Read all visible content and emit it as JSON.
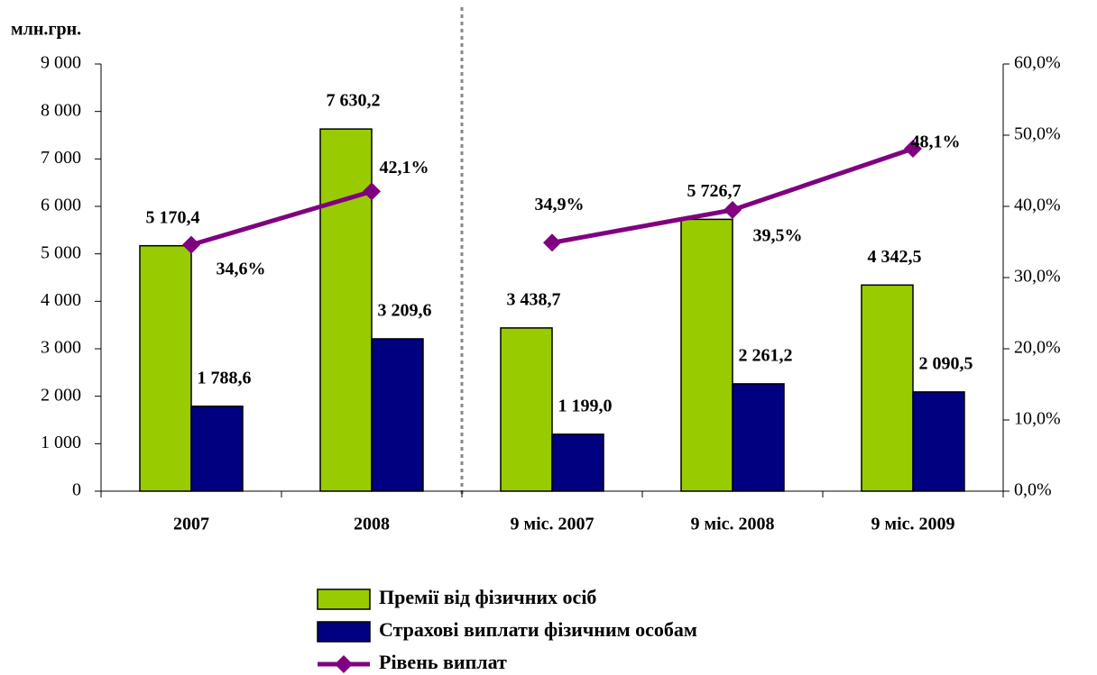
{
  "chart_data": {
    "type": "bar",
    "y_label": "млн.грн.",
    "categories": [
      "2007",
      "2008",
      "9 міс. 2007",
      "9 міс. 2008",
      "9 міс. 2009"
    ],
    "series": [
      {
        "name": "Премії від фізичних осіб",
        "color": "#99cc00",
        "type": "bar",
        "values": [
          5170.4,
          7630.2,
          3438.7,
          5726.7,
          4342.5
        ],
        "value_labels": [
          "5 170,4",
          "7 630,2",
          "3 438,7",
          "5 726,7",
          "4 342,5"
        ]
      },
      {
        "name": "Страхові виплати фізичним особам",
        "color": "#000080",
        "type": "bar",
        "values": [
          1788.6,
          3209.6,
          1199.0,
          2261.2,
          2090.5
        ],
        "value_labels": [
          "1 788,6",
          "3 209,6",
          "1 199,0",
          "2 261,2",
          "2 090,5"
        ]
      },
      {
        "name": "Рівень виплат",
        "color": "#800080",
        "type": "line",
        "axis": "y2",
        "values": [
          34.6,
          42.1,
          34.9,
          39.5,
          48.1
        ],
        "value_labels": [
          "34,6%",
          "42,1%",
          "34,9%",
          "39,5%",
          "48,1%"
        ]
      }
    ],
    "ylim": [
      0,
      9000
    ],
    "yticks": [
      0,
      {
        "value": 1000,
        "label": "1 000"
      },
      {
        "value": 2000,
        "label": "2 000"
      },
      {
        "value": 3000,
        "label": "3 000"
      },
      {
        "value": 4000,
        "label": "4 000"
      },
      {
        "value": 5000,
        "label": "5 000"
      },
      {
        "value": 6000,
        "label": "6 000"
      },
      {
        "value": 7000,
        "label": "7 000"
      },
      {
        "value": 8000,
        "label": "8 000"
      },
      {
        "value": 9000,
        "label": "9 000"
      }
    ],
    "y2lim": [
      0,
      60
    ],
    "y2ticks": [
      {
        "value": 0,
        "label": "0,0%"
      },
      {
        "value": 10,
        "label": "10,0%"
      },
      {
        "value": 20,
        "label": "20,0%"
      },
      {
        "value": 30,
        "label": "30,0%"
      },
      {
        "value": 40,
        "label": "40,0%"
      },
      {
        "value": 50,
        "label": "50,0%"
      },
      {
        "value": 60,
        "label": "60,0%"
      }
    ],
    "legend": "bottom"
  }
}
